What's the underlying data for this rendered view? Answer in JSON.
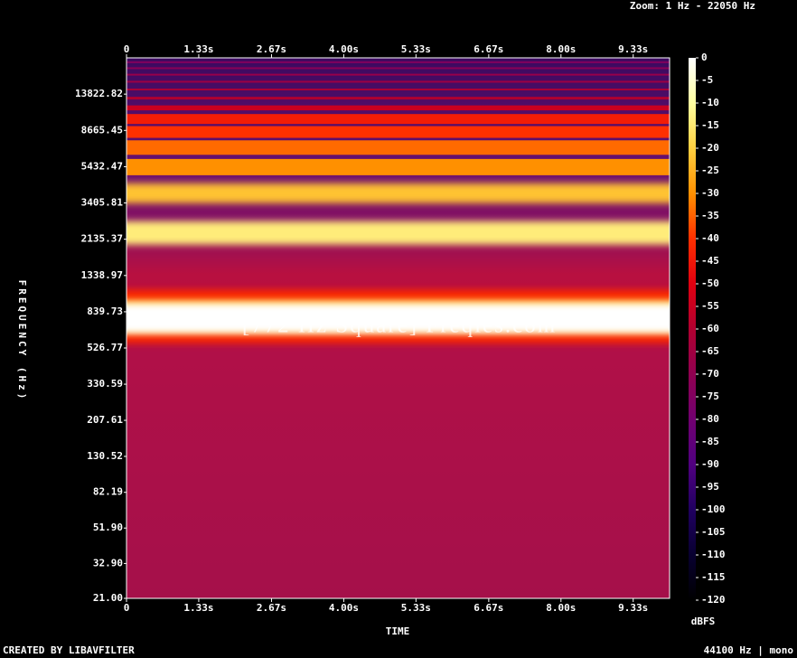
{
  "chart_data": {
    "type": "spectrogram",
    "title": "Zoom: 1 Hz - 22050 Hz",
    "watermark": "[772 Hz Square] Freqies.com",
    "x_label": "TIME",
    "y_label": "FREQUENCY (Hz)",
    "colorbar_label": "dBFS",
    "footer_left": "CREATED BY LIBAVFILTER",
    "footer_right": "44100 Hz | mono",
    "xlim": [
      0,
      10
    ],
    "xticks": [
      0,
      {
        "value": 1.33,
        "label": "1.33s"
      },
      {
        "value": 2.67,
        "label": "2.67s"
      },
      {
        "value": 4.0,
        "label": "4.00s"
      },
      {
        "value": 5.33,
        "label": "5.33s"
      },
      {
        "value": 6.67,
        "label": "6.67s"
      },
      {
        "value": 8.0,
        "label": "8.00s"
      },
      {
        "value": 9.33,
        "label": "9.33s"
      }
    ],
    "ylim": [
      21,
      22050
    ],
    "y_scale": "log",
    "yticks": [
      13822.82,
      {
        "value": 8665.45,
        "label": "8665.45"
      },
      5432.47,
      3405.81,
      2135.37,
      1338.97,
      839.73,
      526.77,
      330.59,
      207.61,
      130.52,
      82.19,
      {
        "value": 51.9,
        "label": "51.90"
      },
      {
        "value": 32.9,
        "label": "32.90"
      },
      {
        "value": 21,
        "label": "21.00"
      }
    ],
    "clim": [
      -120,
      0
    ],
    "cticks": [
      0,
      -5,
      -10,
      -15,
      -20,
      -25,
      -30,
      -35,
      -40,
      -45,
      -50,
      -55,
      -60,
      -65,
      -70,
      -75,
      -80,
      -85,
      -90,
      -95,
      -100,
      -105,
      -110,
      -115,
      -120
    ],
    "harmonics": {
      "x": [
        772,
        2316,
        3860,
        5404,
        6948,
        8492,
        10036,
        11580,
        13124,
        14668,
        16212,
        17756,
        19300,
        20844
      ],
      "values": [
        0,
        -14,
        -22,
        -30,
        -34,
        -40,
        -44,
        -55,
        -60,
        -62,
        -66,
        -68,
        -72,
        -74
      ]
    }
  }
}
